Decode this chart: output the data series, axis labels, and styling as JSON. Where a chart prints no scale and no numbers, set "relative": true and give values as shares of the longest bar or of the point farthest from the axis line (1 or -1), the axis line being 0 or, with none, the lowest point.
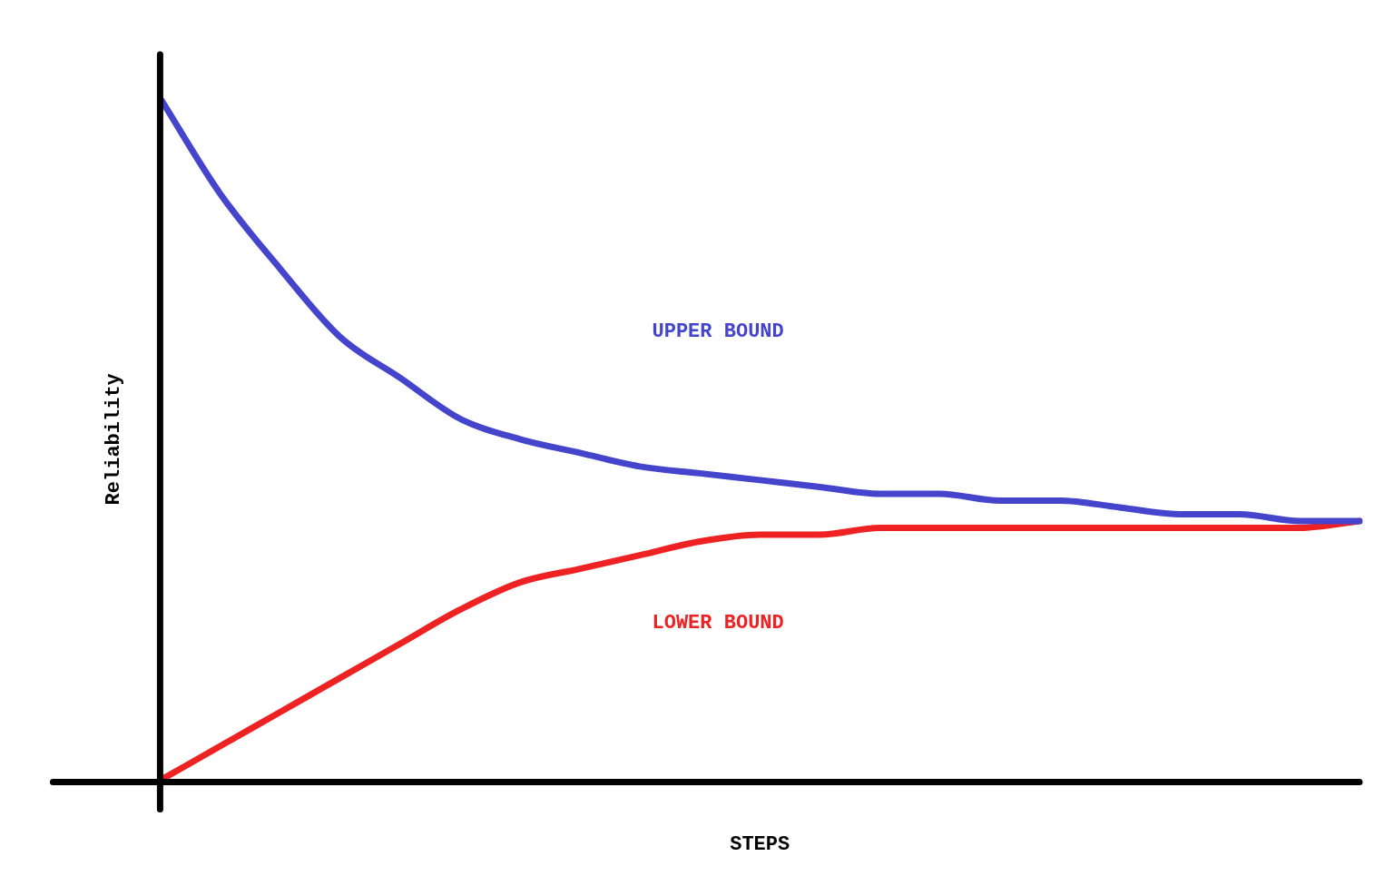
{
  "chart_data": {
    "type": "line",
    "relative": true,
    "xlabel": "STEPS",
    "ylabel": "Reliability",
    "categories": [
      null,
      null,
      null,
      null,
      null,
      null,
      null,
      null,
      null,
      null,
      null,
      null,
      null,
      null,
      null,
      null,
      null,
      null,
      null,
      null,
      null
    ],
    "series": [
      {
        "name": "UPPER BOUND",
        "color": "#4444cc",
        "values": [
          1.0,
          0.86,
          0.75,
          0.65,
          0.59,
          0.53,
          0.5,
          0.48,
          0.46,
          0.45,
          0.44,
          0.43,
          0.42,
          0.42,
          0.41,
          0.41,
          0.4,
          0.39,
          0.39,
          0.38,
          0.38
        ]
      },
      {
        "name": "LOWER BOUND",
        "color": "#ee2222",
        "values": [
          0.0,
          0.05,
          0.1,
          0.15,
          0.2,
          0.25,
          0.29,
          0.31,
          0.33,
          0.35,
          0.36,
          0.36,
          0.37,
          0.37,
          0.37,
          0.37,
          0.37,
          0.37,
          0.37,
          0.37,
          0.38
        ]
      }
    ]
  }
}
